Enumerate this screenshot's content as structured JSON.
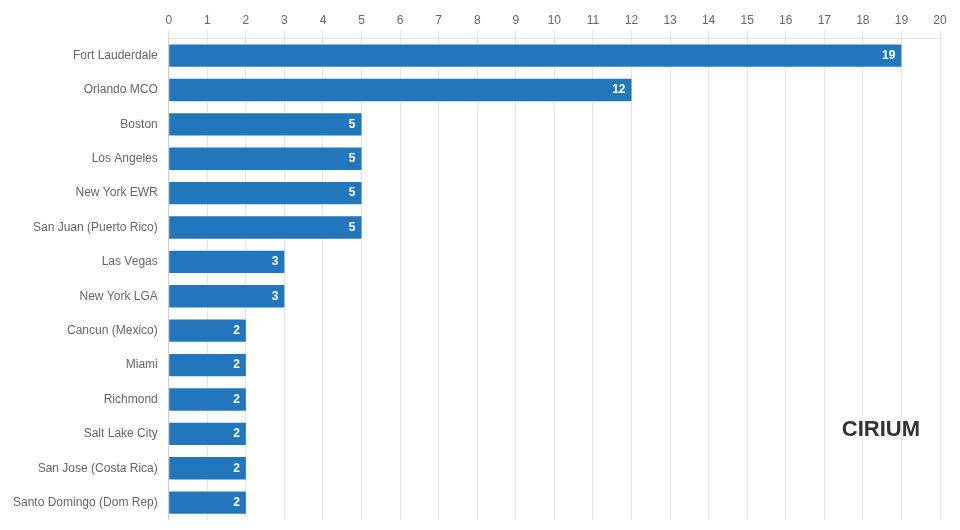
{
  "chart_data": {
    "type": "bar",
    "orientation": "horizontal",
    "categories": [
      "Santo Domingo (Dom Rep)",
      "San Jose (Costa Rica)",
      "Salt Lake City",
      "Richmond",
      "Miami",
      "Cancun (Mexico)",
      "New York LGA",
      "Las Vegas",
      "San Juan (Puerto Rico)",
      "New York EWR",
      "Los Angeles",
      "Boston",
      "Orlando MCO",
      "Fort Lauderdale"
    ],
    "values": [
      2,
      2,
      2,
      2,
      2,
      2,
      3,
      3,
      5,
      5,
      5,
      5,
      12,
      19
    ],
    "color": "#2176BC",
    "xlim": [
      0,
      20
    ],
    "xticks": [
      0,
      1,
      2,
      3,
      4,
      5,
      6,
      7,
      8,
      9,
      10,
      11,
      12,
      13,
      14,
      15,
      16,
      17,
      18,
      19,
      20
    ],
    "grid": true,
    "data_labels": true,
    "annotations": [
      "CIRIUM"
    ]
  }
}
